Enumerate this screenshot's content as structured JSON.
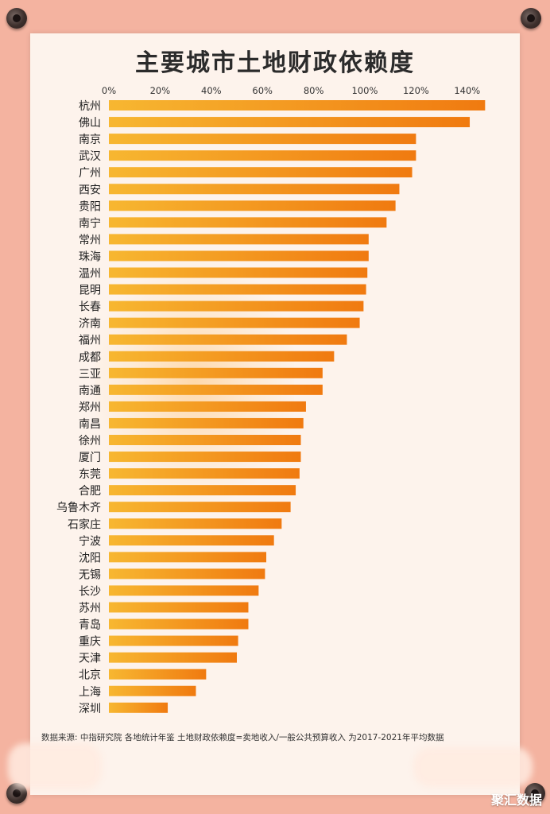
{
  "chart_data": {
    "type": "bar",
    "orientation": "horizontal",
    "title": "主要城市土地财政依赖度",
    "x_tick_labels": [
      "0%",
      "20%",
      "40%",
      "60%",
      "80%",
      "100%",
      "120%",
      "140%"
    ],
    "xlim": [
      0,
      1.45
    ],
    "categories": [
      "杭州",
      "佛山",
      "南京",
      "武汉",
      "广州",
      "西安",
      "贵阳",
      "南宁",
      "常州",
      "珠海",
      "温州",
      "昆明",
      "长春",
      "济南",
      "福州",
      "成都",
      "三亚",
      "南通",
      "郑州",
      "南昌",
      "徐州",
      "厦门",
      "东莞",
      "合肥",
      "乌鲁木齐",
      "石家庄",
      "宁波",
      "沈阳",
      "无锡",
      "长沙",
      "苏州",
      "青岛",
      "重庆",
      "天津",
      "北京",
      "上海",
      "深圳"
    ],
    "values": [
      1.47,
      1.41,
      1.2,
      1.2,
      1.185,
      1.135,
      1.12,
      1.085,
      1.015,
      1.015,
      1.01,
      1.005,
      0.995,
      0.98,
      0.93,
      0.88,
      0.835,
      0.835,
      0.77,
      0.76,
      0.75,
      0.75,
      0.745,
      0.73,
      0.71,
      0.675,
      0.645,
      0.615,
      0.61,
      0.585,
      0.545,
      0.545,
      0.505,
      0.5,
      0.38,
      0.34,
      0.23
    ],
    "bar_color_start": "#f7b731",
    "bar_color_end": "#f07a10",
    "grid": false,
    "legend": "none"
  },
  "source_note": "数据来源: 中指研究院 各地统计年鉴   土地财政依赖度=卖地收入/一般公共预算收入 为2017-2021年平均数据",
  "watermark": "聚汇数据"
}
